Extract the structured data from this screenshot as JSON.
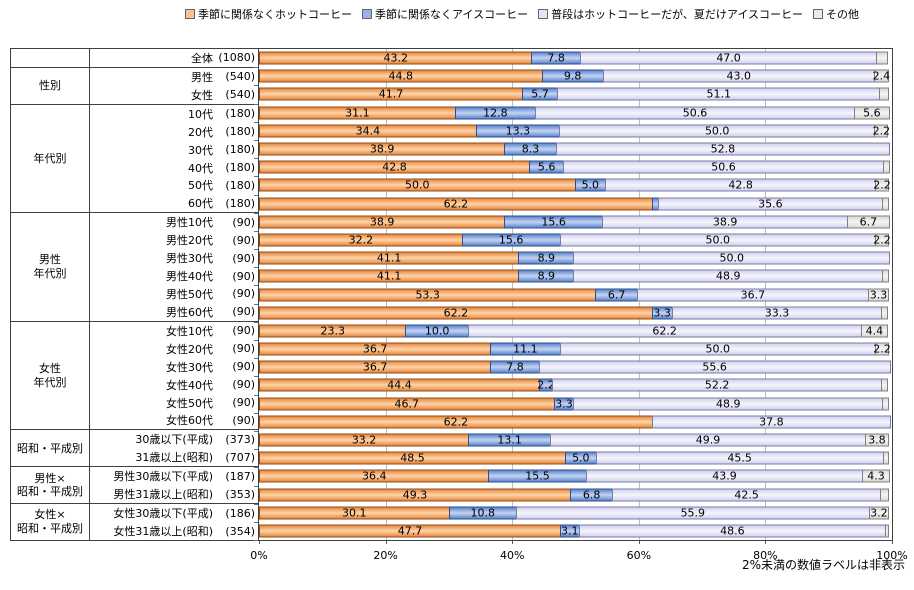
{
  "chart_data": {
    "type": "bar",
    "orientation": "horizontal",
    "stacked": true,
    "unit": "%",
    "xlim": [
      0,
      100
    ],
    "x_tick_labels": [
      "0%",
      "20%",
      "40%",
      "60%",
      "80%",
      "100%"
    ],
    "grid": "vertical lines every 20%",
    "legend_position": "top",
    "annotation": "2%未満の数値ラベルは非表示",
    "label_rule_min_visible": 2,
    "groups": [
      {
        "label_lines": [],
        "span": 1
      },
      {
        "label_lines": [
          "性別"
        ],
        "span": 2
      },
      {
        "label_lines": [
          "年代別"
        ],
        "span": 6
      },
      {
        "label_lines": [
          "男性",
          "年代別"
        ],
        "span": 6
      },
      {
        "label_lines": [
          "女性",
          "年代別"
        ],
        "span": 6
      },
      {
        "label_lines": [
          "昭和・平成別"
        ],
        "span": 2
      },
      {
        "label_lines": [
          "男性×",
          "昭和・平成別"
        ],
        "span": 2
      },
      {
        "label_lines": [
          "女性×",
          "昭和・平成別"
        ],
        "span": 2
      }
    ],
    "categories": [
      "全体",
      "男性",
      "女性",
      "10代",
      "20代",
      "30代",
      "40代",
      "50代",
      "60代",
      "男性10代",
      "男性20代",
      "男性30代",
      "男性40代",
      "男性50代",
      "男性60代",
      "女性10代",
      "女性20代",
      "女性30代",
      "女性40代",
      "女性50代",
      "女性60代",
      "30歳以下(平成)",
      "31歳以上(昭和)",
      "男性30歳以下(平成)",
      "男性31歳以上(昭和)",
      "女性30歳以下(平成)",
      "女性31歳以上(昭和)"
    ],
    "counts": [
      1080,
      540,
      540,
      180,
      180,
      180,
      180,
      180,
      180,
      90,
      90,
      90,
      90,
      90,
      90,
      90,
      90,
      90,
      90,
      90,
      90,
      373,
      707,
      187,
      353,
      186,
      354
    ],
    "series": [
      {
        "name": "季節に関係なくホットコーヒー",
        "legend_color": "#FAC08F",
        "gradient_edge": "#E8883F",
        "gradient_center": "#FDD4A9",
        "border": "#8F4F1D",
        "values": [
          43.2,
          44.8,
          41.7,
          31.1,
          34.4,
          38.9,
          42.8,
          50.0,
          62.2,
          38.9,
          32.2,
          41.1,
          41.1,
          53.3,
          62.2,
          23.3,
          36.7,
          36.7,
          44.4,
          46.7,
          62.2,
          33.2,
          48.5,
          36.4,
          49.3,
          30.1,
          47.7
        ]
      },
      {
        "name": "季節に関係なくアイスコーヒー",
        "legend_color": "#95B3E7",
        "gradient_edge": "#5E86D0",
        "gradient_center": "#C4D4F1",
        "border": "#2E4E8F",
        "values": [
          7.8,
          9.8,
          5.7,
          12.8,
          13.3,
          8.3,
          5.6,
          5.0,
          1.1,
          15.6,
          15.6,
          8.9,
          8.9,
          6.7,
          3.3,
          10.0,
          11.1,
          7.8,
          2.2,
          3.3,
          0,
          13.1,
          5.0,
          15.5,
          6.8,
          10.8,
          3.1
        ]
      },
      {
        "name": "普段はホットコーヒーだが、夏だけアイスコーヒー",
        "legend_color": "#E4E4F6",
        "gradient_edge": "#D2D2EE",
        "gradient_center": "#F6F6FD",
        "border": "#7B7BA8",
        "values": [
          47.0,
          43.0,
          51.1,
          50.6,
          50.0,
          52.8,
          50.6,
          42.8,
          35.6,
          38.9,
          50.0,
          50.0,
          48.9,
          36.7,
          33.3,
          62.2,
          50.0,
          55.6,
          52.2,
          48.9,
          37.8,
          49.9,
          45.5,
          43.9,
          42.5,
          55.9,
          48.6
        ]
      },
      {
        "name": "その他",
        "legend_color": "#EBEBEB",
        "gradient_edge": "#D9D9D9",
        "gradient_center": "#F5F5F5",
        "border": "#808080",
        "values": [
          1.9,
          2.4,
          1.5,
          5.6,
          2.2,
          0,
          1.1,
          2.2,
          1.1,
          6.7,
          2.2,
          0,
          1.1,
          3.3,
          1.1,
          4.4,
          2.2,
          0,
          1.1,
          1.1,
          0,
          3.8,
          1.0,
          4.3,
          1.4,
          3.2,
          0.6
        ]
      }
    ]
  }
}
